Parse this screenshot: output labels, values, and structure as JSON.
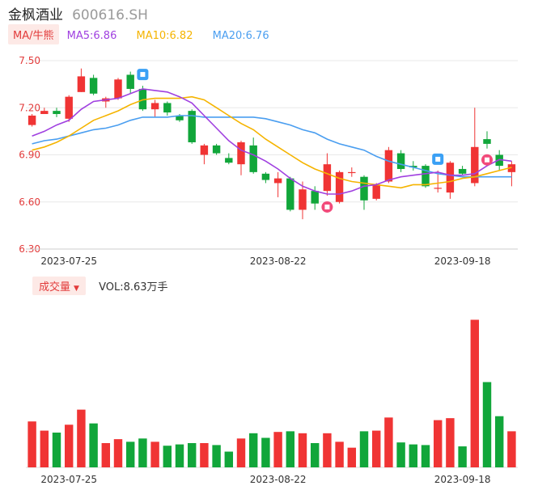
{
  "header": {
    "name": "金枫酒业",
    "code": "600616.SH"
  },
  "ma": {
    "type_label": "MA/牛熊",
    "items": [
      {
        "label": "MA5:6.86",
        "color": "#a040e0"
      },
      {
        "label": "MA10:6.82",
        "color": "#f5b400"
      },
      {
        "label": "MA20:6.76",
        "color": "#4a9ef0"
      }
    ]
  },
  "volume": {
    "select_label": "成交量",
    "caret": "▼",
    "text": "VOL:8.63万手"
  },
  "colors": {
    "up": "#f03434",
    "down": "#11a63a",
    "grid": "#e8e8e8",
    "axis_label": "#e23b3b",
    "signal": "#3aa0f5",
    "signal_bear": "#f24a7a"
  },
  "chart_data": [
    {
      "type": "candlestick",
      "ylim": [
        6.3,
        7.5
      ],
      "yticks": [
        "7.50",
        "7.20",
        "6.90",
        "6.60",
        "6.30"
      ],
      "xtick_labels": [
        {
          "index": 3,
          "label": "2023-07-25"
        },
        {
          "index": 20,
          "label": "2023-08-22"
        },
        {
          "index": 35,
          "label": "2023-09-18"
        }
      ],
      "candles": [
        {
          "o": 7.09,
          "c": 7.15,
          "h": 7.16,
          "l": 7.08
        },
        {
          "o": 7.16,
          "c": 7.18,
          "h": 7.2,
          "l": 7.16
        },
        {
          "o": 7.18,
          "c": 7.16,
          "h": 7.2,
          "l": 7.14
        },
        {
          "o": 7.13,
          "c": 7.27,
          "h": 7.28,
          "l": 7.11
        },
        {
          "o": 7.3,
          "c": 7.4,
          "h": 7.45,
          "l": 7.3
        },
        {
          "o": 7.39,
          "c": 7.29,
          "h": 7.41,
          "l": 7.28
        },
        {
          "o": 7.24,
          "c": 7.26,
          "h": 7.27,
          "l": 7.2
        },
        {
          "o": 7.26,
          "c": 7.38,
          "h": 7.39,
          "l": 7.25
        },
        {
          "o": 7.41,
          "c": 7.32,
          "h": 7.43,
          "l": 7.29
        },
        {
          "o": 7.32,
          "c": 7.19,
          "h": 7.34,
          "l": 7.18
        },
        {
          "o": 7.19,
          "c": 7.23,
          "h": 7.25,
          "l": 7.14
        },
        {
          "o": 7.23,
          "c": 7.17,
          "h": 7.24,
          "l": 7.15
        },
        {
          "o": 7.15,
          "c": 7.12,
          "h": 7.16,
          "l": 7.11
        },
        {
          "o": 7.18,
          "c": 6.98,
          "h": 7.19,
          "l": 6.97
        },
        {
          "o": 6.9,
          "c": 6.96,
          "h": 6.97,
          "l": 6.84
        },
        {
          "o": 6.96,
          "c": 6.91,
          "h": 6.97,
          "l": 6.9
        },
        {
          "o": 6.88,
          "c": 6.85,
          "h": 6.91,
          "l": 6.84
        },
        {
          "o": 6.84,
          "c": 6.98,
          "h": 6.99,
          "l": 6.77
        },
        {
          "o": 6.96,
          "c": 6.79,
          "h": 7.01,
          "l": 6.78
        },
        {
          "o": 6.78,
          "c": 6.74,
          "h": 6.79,
          "l": 6.72
        },
        {
          "o": 6.72,
          "c": 6.75,
          "h": 6.79,
          "l": 6.63
        },
        {
          "o": 6.75,
          "c": 6.55,
          "h": 6.76,
          "l": 6.54
        },
        {
          "o": 6.55,
          "c": 6.68,
          "h": 6.73,
          "l": 6.49
        },
        {
          "o": 6.67,
          "c": 6.59,
          "h": 6.7,
          "l": 6.55
        },
        {
          "o": 6.67,
          "c": 6.84,
          "h": 6.91,
          "l": 6.64
        },
        {
          "o": 6.6,
          "c": 6.79,
          "h": 6.8,
          "l": 6.59
        },
        {
          "o": 6.79,
          "c": 6.79,
          "h": 6.82,
          "l": 6.76
        },
        {
          "o": 6.76,
          "c": 6.61,
          "h": 6.77,
          "l": 6.55
        },
        {
          "o": 6.62,
          "c": 6.71,
          "h": 6.72,
          "l": 6.61
        },
        {
          "o": 6.73,
          "c": 6.93,
          "h": 6.95,
          "l": 6.72
        },
        {
          "o": 6.91,
          "c": 6.81,
          "h": 6.93,
          "l": 6.79
        },
        {
          "o": 6.83,
          "c": 6.82,
          "h": 6.86,
          "l": 6.8
        },
        {
          "o": 6.83,
          "c": 6.7,
          "h": 6.84,
          "l": 6.69
        },
        {
          "o": 6.69,
          "c": 6.69,
          "h": 6.8,
          "l": 6.66
        },
        {
          "o": 6.66,
          "c": 6.85,
          "h": 6.86,
          "l": 6.62
        },
        {
          "o": 6.81,
          "c": 6.78,
          "h": 6.83,
          "l": 6.77
        },
        {
          "o": 6.72,
          "c": 6.95,
          "h": 7.2,
          "l": 6.7
        },
        {
          "o": 7.0,
          "c": 6.97,
          "h": 7.05,
          "l": 6.94
        },
        {
          "o": 6.9,
          "c": 6.83,
          "h": 6.93,
          "l": 6.8
        },
        {
          "o": 6.79,
          "c": 6.84,
          "h": 6.86,
          "l": 6.7
        }
      ],
      "ma5": [
        7.02,
        7.05,
        7.09,
        7.12,
        7.19,
        7.24,
        7.25,
        7.26,
        7.29,
        7.32,
        7.31,
        7.3,
        7.27,
        7.23,
        7.15,
        7.07,
        6.99,
        6.93,
        6.9,
        6.86,
        6.81,
        6.75,
        6.7,
        6.67,
        6.65,
        6.65,
        6.67,
        6.7,
        6.71,
        6.74,
        6.76,
        6.77,
        6.78,
        6.79,
        6.77,
        6.77,
        6.78,
        6.83,
        6.87,
        6.86
      ],
      "ma10": [
        6.93,
        6.95,
        6.98,
        7.02,
        7.07,
        7.12,
        7.15,
        7.18,
        7.22,
        7.25,
        7.26,
        7.26,
        7.26,
        7.27,
        7.25,
        7.2,
        7.15,
        7.1,
        7.06,
        7.0,
        6.95,
        6.9,
        6.85,
        6.81,
        6.78,
        6.75,
        6.73,
        6.72,
        6.71,
        6.7,
        6.69,
        6.71,
        6.71,
        6.72,
        6.73,
        6.75,
        6.76,
        6.78,
        6.8,
        6.82
      ],
      "ma20": [
        6.97,
        6.99,
        7.0,
        7.02,
        7.04,
        7.06,
        7.07,
        7.09,
        7.12,
        7.14,
        7.14,
        7.14,
        7.15,
        7.15,
        7.14,
        7.14,
        7.14,
        7.14,
        7.14,
        7.13,
        7.11,
        7.09,
        7.06,
        7.04,
        7.0,
        6.97,
        6.95,
        6.93,
        6.89,
        6.86,
        6.84,
        6.82,
        6.8,
        6.78,
        6.77,
        6.76,
        6.76,
        6.76,
        6.76,
        6.76
      ],
      "signals": [
        {
          "index": 9,
          "kind": "bull"
        },
        {
          "index": 24,
          "kind": "bear"
        },
        {
          "index": 33,
          "kind": "bull"
        },
        {
          "index": 37,
          "kind": "bear"
        }
      ]
    },
    {
      "type": "bar",
      "series": [
        {
          "values": [
            7.0,
            5.6,
            5.3,
            6.5,
            8.8,
            6.7,
            3.7,
            4.3,
            3.9,
            4.4,
            3.9,
            3.3,
            3.5,
            3.7,
            3.7,
            3.4,
            2.4,
            4.4,
            5.2,
            4.5,
            5.4,
            5.5,
            5.2,
            3.7,
            5.2,
            3.9,
            3.0,
            5.5,
            5.6,
            7.6,
            3.8,
            3.5,
            3.4,
            7.2,
            7.5,
            3.2,
            22.5,
            13.0,
            7.8,
            5.5
          ]
        }
      ]
    }
  ]
}
